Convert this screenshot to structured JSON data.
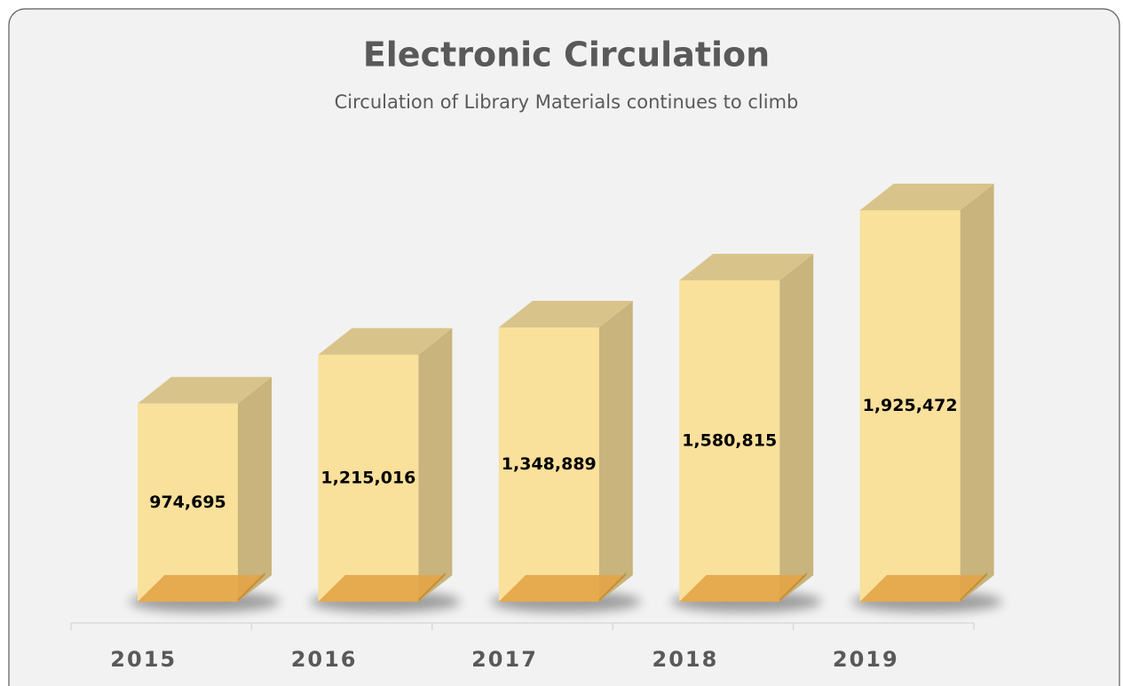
{
  "chart_data": {
    "type": "bar3d",
    "title": "Electronic Circulation",
    "subtitle": "Circulation of Library Materials continues to climb",
    "categories": [
      "2015",
      "2016",
      "2017",
      "2018",
      "2019"
    ],
    "values": [
      974695,
      1215016,
      1348889,
      1580815,
      1925472
    ],
    "value_labels": [
      "974,695",
      "1,215,016",
      "1,348,889",
      "1,580,815",
      "1,925,472"
    ],
    "color": "#f9e09b"
  }
}
